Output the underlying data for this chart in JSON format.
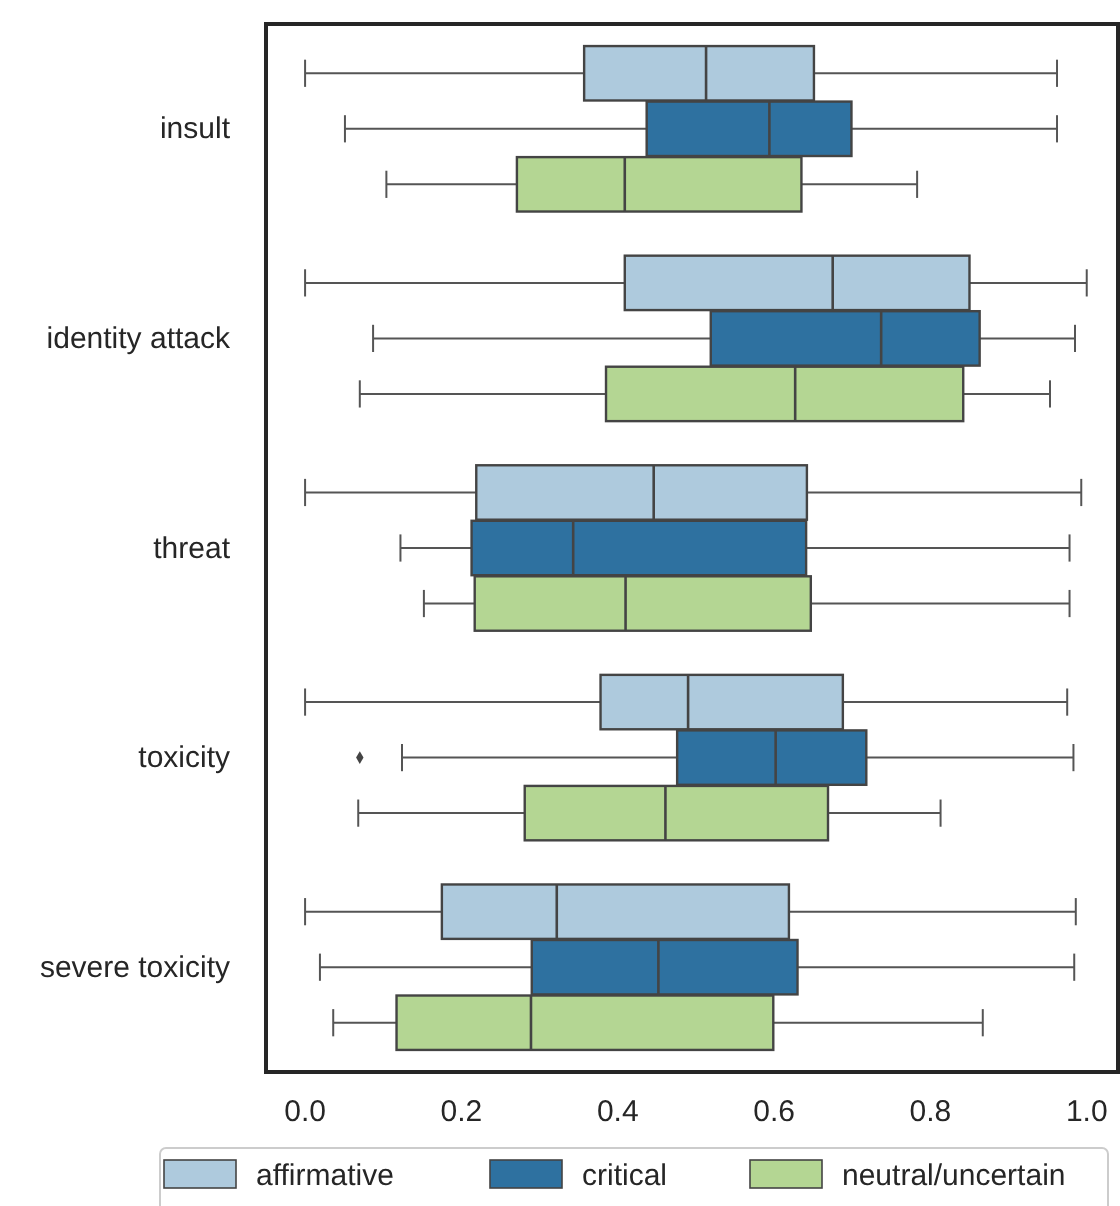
{
  "chart_data": {
    "type": "box",
    "orientation": "horizontal",
    "categories": [
      "insult",
      "identity attack",
      "threat",
      "toxicity",
      "severe toxicity"
    ],
    "xlim": [
      -0.05,
      1.04
    ],
    "xticks": [
      {
        "value": 0,
        "label": "0.0"
      },
      {
        "value": 0.2,
        "label": "0.2"
      },
      {
        "value": 0.4,
        "label": "0.4"
      },
      {
        "value": 0.6,
        "label": "0.6"
      },
      {
        "value": 0.8,
        "label": "0.8"
      },
      {
        "value": 1,
        "label": "1.0"
      }
    ],
    "legend": "bottom",
    "grid": false,
    "series": [
      {
        "name": "affirmative",
        "color": "#aecadd",
        "boxes": [
          {
            "low": 0.0,
            "q1": 0.357,
            "median": 0.513,
            "q3": 0.651,
            "high": 0.962
          },
          {
            "low": 0.0,
            "q1": 0.409,
            "median": 0.675,
            "q3": 0.85,
            "high": 1.0
          },
          {
            "low": 0.0,
            "q1": 0.219,
            "median": 0.446,
            "q3": 0.642,
            "high": 0.993
          },
          {
            "low": 0.0,
            "q1": 0.378,
            "median": 0.49,
            "q3": 0.688,
            "high": 0.975
          },
          {
            "low": 0.0,
            "q1": 0.175,
            "median": 0.322,
            "q3": 0.619,
            "high": 0.986
          }
        ]
      },
      {
        "name": "critical",
        "color": "#2e71a0",
        "boxes": [
          {
            "low": 0.051,
            "q1": 0.437,
            "median": 0.594,
            "q3": 0.699,
            "high": 0.962
          },
          {
            "low": 0.087,
            "q1": 0.519,
            "median": 0.737,
            "q3": 0.863,
            "high": 0.985
          },
          {
            "low": 0.122,
            "q1": 0.213,
            "median": 0.343,
            "q3": 0.641,
            "high": 0.978
          },
          {
            "low": 0.124,
            "q1": 0.476,
            "median": 0.602,
            "q3": 0.718,
            "high": 0.983,
            "outliers": [
              0.07
            ]
          },
          {
            "low": 0.019,
            "q1": 0.29,
            "median": 0.452,
            "q3": 0.63,
            "high": 0.984
          }
        ]
      },
      {
        "name": "neutral/uncertain",
        "color": "#b4d693",
        "boxes": [
          {
            "low": 0.104,
            "q1": 0.271,
            "median": 0.409,
            "q3": 0.635,
            "high": 0.783
          },
          {
            "low": 0.07,
            "q1": 0.385,
            "median": 0.627,
            "q3": 0.842,
            "high": 0.953
          },
          {
            "low": 0.152,
            "q1": 0.217,
            "median": 0.41,
            "q3": 0.647,
            "high": 0.978
          },
          {
            "low": 0.068,
            "q1": 0.281,
            "median": 0.461,
            "q3": 0.669,
            "high": 0.813
          },
          {
            "low": 0.036,
            "q1": 0.117,
            "median": 0.289,
            "q3": 0.599,
            "high": 0.867
          }
        ]
      }
    ]
  }
}
